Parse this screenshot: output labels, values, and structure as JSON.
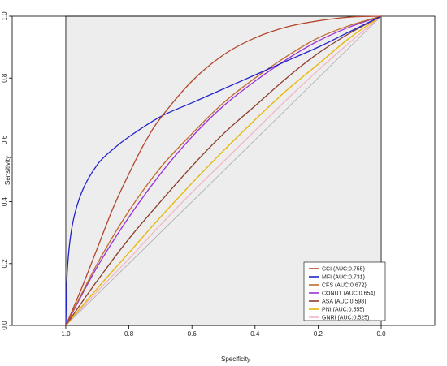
{
  "chart_data": {
    "type": "line",
    "xlabel": "Specificity",
    "ylabel": "Sensitivity",
    "xlim": [
      1.17,
      -0.17
    ],
    "ylim": [
      0,
      1
    ],
    "x_axis_reversed": true,
    "x_ticks": [
      "1.0",
      "0.8",
      "0.6",
      "0.4",
      "0.2",
      "0.0"
    ],
    "y_ticks": [
      "0.0",
      "0.2",
      "0.4",
      "0.6",
      "0.8",
      "1.0"
    ],
    "grid": false,
    "plot_background": "#ededed",
    "diagonal_reference": true,
    "legend_position": "bottom-right",
    "series": [
      {
        "name": "CCI (AUC:0.755)",
        "color": "#b5462c",
        "x": [
          1.0,
          0.95,
          0.9,
          0.85,
          0.8,
          0.75,
          0.7,
          0.6,
          0.5,
          0.4,
          0.3,
          0.2,
          0.1,
          0.0
        ],
        "y": [
          0.0,
          0.12,
          0.25,
          0.38,
          0.49,
          0.59,
          0.67,
          0.79,
          0.875,
          0.93,
          0.965,
          0.985,
          0.997,
          1.0
        ]
      },
      {
        "name": "MFI (AUC:0.731)",
        "color": "#2323cc",
        "x": [
          1.0,
          0.995,
          0.98,
          0.95,
          0.9,
          0.85,
          0.8,
          0.7,
          0.6,
          0.5,
          0.4,
          0.3,
          0.2,
          0.1,
          0.0
        ],
        "y": [
          0.0,
          0.18,
          0.32,
          0.43,
          0.52,
          0.57,
          0.61,
          0.675,
          0.72,
          0.765,
          0.81,
          0.855,
          0.9,
          0.95,
          1.0
        ]
      },
      {
        "name": "CFS (AUC:0.672)",
        "color": "#bf6a2a",
        "x": [
          1.0,
          0.9,
          0.8,
          0.7,
          0.6,
          0.5,
          0.4,
          0.3,
          0.2,
          0.1,
          0.0
        ],
        "y": [
          0.0,
          0.2,
          0.37,
          0.51,
          0.62,
          0.72,
          0.8,
          0.87,
          0.93,
          0.97,
          1.0
        ]
      },
      {
        "name": "CONUT (AUC:0.654)",
        "color": "#9b30d9",
        "x": [
          1.0,
          0.9,
          0.8,
          0.7,
          0.6,
          0.5,
          0.4,
          0.3,
          0.2,
          0.1,
          0.0
        ],
        "y": [
          0.0,
          0.19,
          0.35,
          0.49,
          0.61,
          0.71,
          0.79,
          0.86,
          0.92,
          0.965,
          1.0
        ]
      },
      {
        "name": "ASA (AUC:0.598)",
        "color": "#8c3d2c",
        "x": [
          1.0,
          0.9,
          0.8,
          0.7,
          0.6,
          0.5,
          0.4,
          0.3,
          0.2,
          0.1,
          0.0
        ],
        "y": [
          0.0,
          0.145,
          0.28,
          0.4,
          0.515,
          0.62,
          0.71,
          0.8,
          0.88,
          0.945,
          1.0
        ]
      },
      {
        "name": "PNI (AUC:0.555)",
        "color": "#e8b400",
        "x": [
          1.0,
          0.9,
          0.8,
          0.7,
          0.6,
          0.5,
          0.4,
          0.3,
          0.2,
          0.1,
          0.0
        ],
        "y": [
          0.0,
          0.12,
          0.235,
          0.35,
          0.46,
          0.565,
          0.665,
          0.76,
          0.845,
          0.93,
          1.0
        ]
      },
      {
        "name": "GNRI (AUC:0.525)",
        "color": "#f2b6c6",
        "x": [
          1.0,
          0.9,
          0.8,
          0.7,
          0.6,
          0.5,
          0.4,
          0.3,
          0.2,
          0.1,
          0.0
        ],
        "y": [
          0.0,
          0.11,
          0.215,
          0.325,
          0.43,
          0.53,
          0.63,
          0.73,
          0.825,
          0.915,
          1.0
        ]
      }
    ]
  }
}
